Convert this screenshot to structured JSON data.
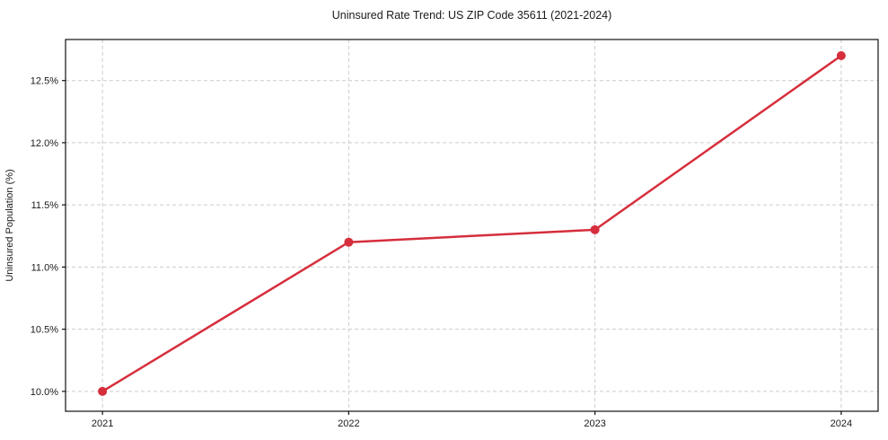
{
  "figure": {
    "background": "#ffffff",
    "plot_background": "#ffffff",
    "spine_color": "#111111",
    "text_color": "#1a1a1a",
    "grid_color": "#cccccc"
  },
  "chart_data": {
    "type": "line",
    "title": "Uninsured Rate Trend: US ZIP Code 35611 (2021-2024)",
    "xlabel": "",
    "ylabel": "Uninsured Population (%)",
    "x": [
      2021,
      2022,
      2023,
      2024
    ],
    "xtick_labels": [
      "2021",
      "2022",
      "2023",
      "2024"
    ],
    "values": [
      10.0,
      11.2,
      11.3,
      12.7
    ],
    "value_unit": "%",
    "yticks": [
      10.0,
      10.5,
      11.0,
      11.5,
      12.0,
      12.5
    ],
    "ytick_labels": [
      "10.0%",
      "10.5%",
      "11.0%",
      "11.5%",
      "12.0%",
      "12.5%"
    ],
    "xlim": [
      2020.85,
      2024.15
    ],
    "ylim": [
      9.84,
      12.83
    ],
    "grid": "dashed",
    "legend_position": "none",
    "line_color": "#d62e3c",
    "marker": "circle",
    "marker_radius": 5,
    "line_width": 2.5
  }
}
